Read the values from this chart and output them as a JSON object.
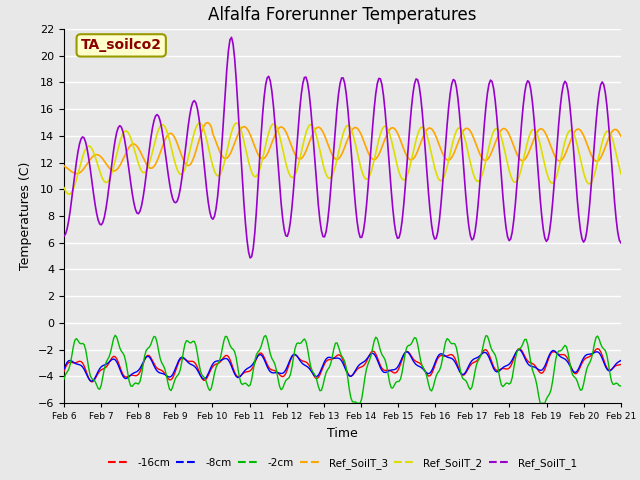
{
  "title": "Alfalfa Forerunner Temperatures",
  "xlabel": "Time",
  "ylabel": "Temperatures (C)",
  "ylim": [
    -6,
    22
  ],
  "yticks": [
    -6,
    -4,
    -2,
    0,
    2,
    4,
    6,
    8,
    10,
    12,
    14,
    16,
    18,
    20,
    22
  ],
  "x_labels": [
    "Feb 6",
    "Feb 7",
    "Feb 8",
    "Feb 9",
    "Feb 10",
    "Feb 11",
    "Feb 12",
    "Feb 13",
    "Feb 14",
    "Feb 15",
    "Feb 16",
    "Feb 17",
    "Feb 18",
    "Feb 19",
    "Feb 20",
    "Feb 21"
  ],
  "annotation_text": "TA_soilco2",
  "annotation_color": "#8b0000",
  "annotation_bg": "#ffffcc",
  "annotation_border": "#999900",
  "bg_color": "#e8e8e8",
  "colors": {
    "neg16cm": "#ff0000",
    "neg8cm": "#0000ff",
    "neg2cm": "#00bb00",
    "ref3": "#ffa500",
    "ref2": "#dddd00",
    "ref1": "#9900cc"
  },
  "legend_labels": [
    "-16cm",
    "-8cm",
    "-2cm",
    "Ref_SoilT_3",
    "Ref_SoilT_2",
    "Ref_SoilT_1"
  ],
  "days": 15,
  "n_points": 360
}
